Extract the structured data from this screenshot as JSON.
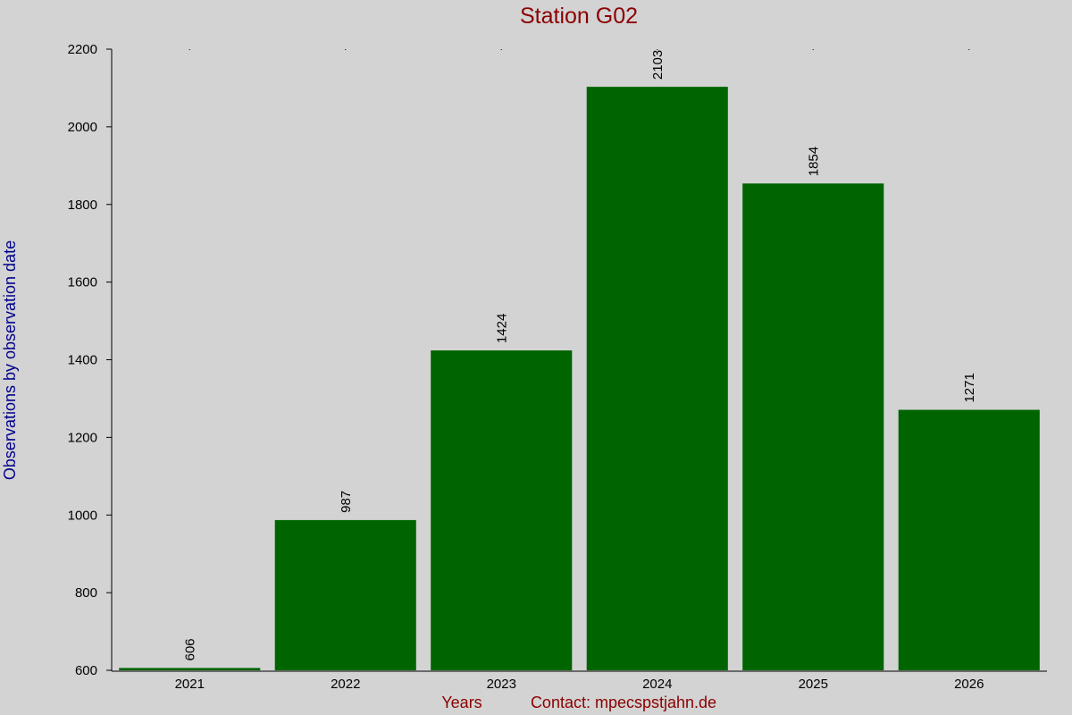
{
  "chart_data": {
    "type": "bar",
    "title": "Station G02",
    "y_label": "Observations by observation date",
    "x_label": "Years",
    "annotation": "Contact: mpecspstjahn.de",
    "categories": [
      "2021",
      "2022",
      "2023",
      "2024",
      "2025",
      "2026"
    ],
    "values": [
      606,
      987,
      1424,
      2103,
      1854,
      1271
    ],
    "color": "#006400",
    "ylim": [
      600,
      2200
    ],
    "yticks": [
      600,
      800,
      1000,
      1200,
      1400,
      1600,
      1800,
      2000,
      2200
    ],
    "grid": false
  }
}
